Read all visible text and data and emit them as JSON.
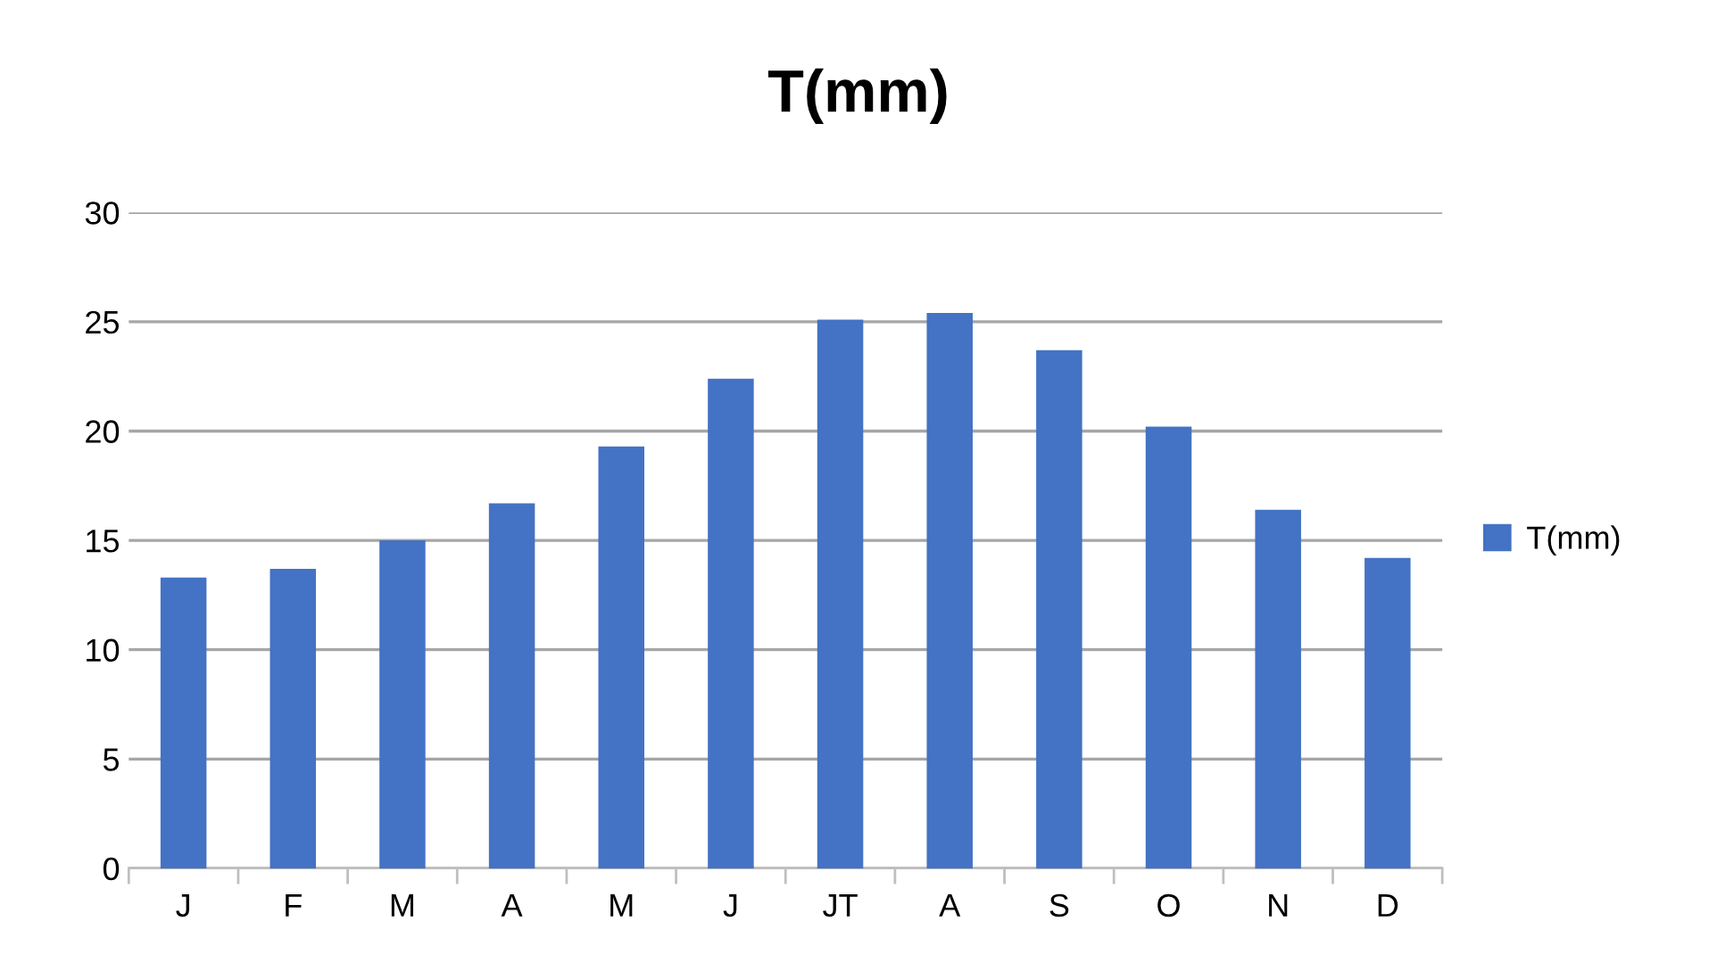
{
  "chart_data": {
    "type": "bar",
    "title": "T(mm)",
    "categories": [
      "J",
      "F",
      "M",
      "A",
      "M",
      "J",
      "JT",
      "A",
      "S",
      "O",
      "N",
      "D"
    ],
    "series": [
      {
        "name": "T(mm)",
        "color": "#4472c4",
        "values": [
          13.3,
          13.7,
          15.0,
          16.7,
          19.3,
          22.4,
          25.1,
          25.4,
          23.7,
          20.2,
          16.4,
          14.2
        ]
      }
    ],
    "ylim": [
      0,
      30
    ],
    "yticks": [
      0,
      5,
      10,
      15,
      20,
      25,
      30
    ],
    "grid": "y",
    "legend": "right"
  }
}
